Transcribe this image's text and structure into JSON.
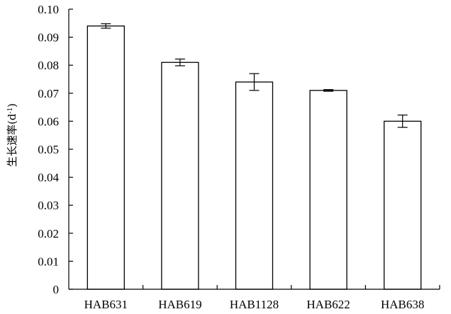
{
  "chart_data": {
    "type": "bar",
    "ylabel": "生长速率(d",
    "ylabel_sup": "-1",
    "ylabel_close": ")",
    "categories": [
      "HAB631",
      "HAB619",
      "HAB1128",
      "HAB622",
      "HAB638"
    ],
    "values": [
      0.094,
      0.081,
      0.074,
      0.071,
      0.06
    ],
    "errors": [
      0.0008,
      0.0012,
      0.003,
      0.0003,
      0.0022
    ],
    "ylim": [
      0,
      0.1
    ],
    "yticks": [
      "0",
      "0.01",
      "0.02",
      "0.03",
      "0.04",
      "0.05",
      "0.06",
      "0.07",
      "0.08",
      "0.09",
      "0.10"
    ],
    "grid": false,
    "bar_fill": "#ffffff",
    "bar_stroke": "#000000"
  }
}
